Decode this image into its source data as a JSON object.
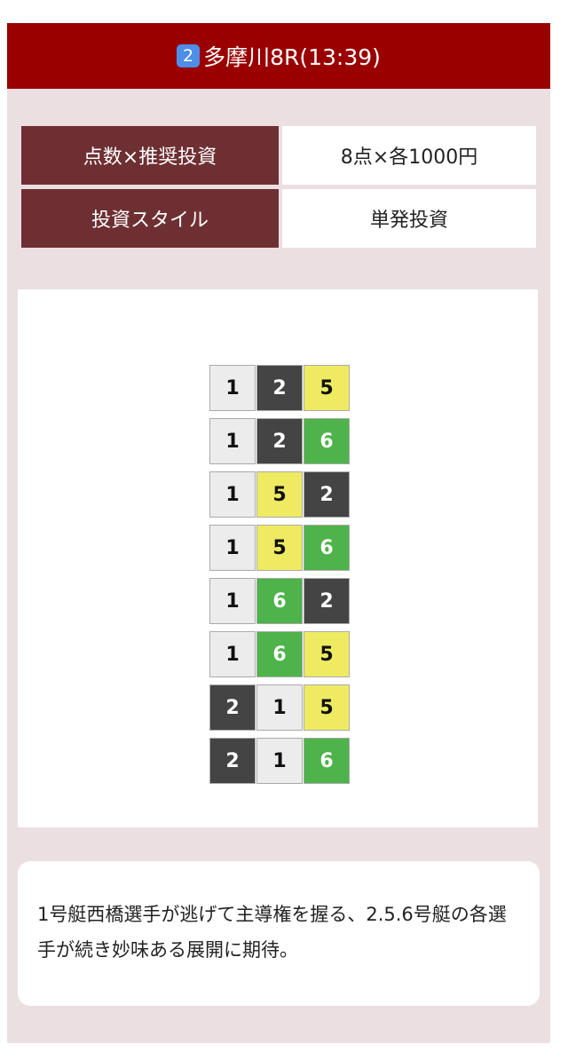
{
  "header": {
    "icon_number": "2",
    "title": "多摩川8R(13:39)"
  },
  "table": {
    "rows": [
      [
        "点数×推奨投資",
        "8点×各1000円"
      ],
      [
        "投資スタイル",
        "単発投資"
      ]
    ]
  },
  "combinations": {
    "rows": [
      [
        1,
        2,
        5
      ],
      [
        1,
        2,
        6
      ],
      [
        1,
        5,
        2
      ],
      [
        1,
        5,
        6
      ],
      [
        1,
        6,
        2
      ],
      [
        1,
        6,
        5
      ],
      [
        2,
        1,
        5
      ],
      [
        2,
        1,
        6
      ]
    ],
    "colors": {
      "1": {
        "bg": "#ececec",
        "fg": "#111111"
      },
      "2": {
        "bg": "#444444",
        "fg": "#ffffff"
      },
      "5": {
        "bg": "#eeeb62",
        "fg": "#111111"
      },
      "6": {
        "bg": "#4db34a",
        "fg": "#ffffff"
      }
    }
  },
  "comment": "1号艇西橋選手が逃げて主導権を握る、2.5.6号艇の各選手が続き妙味ある展開に期待。"
}
